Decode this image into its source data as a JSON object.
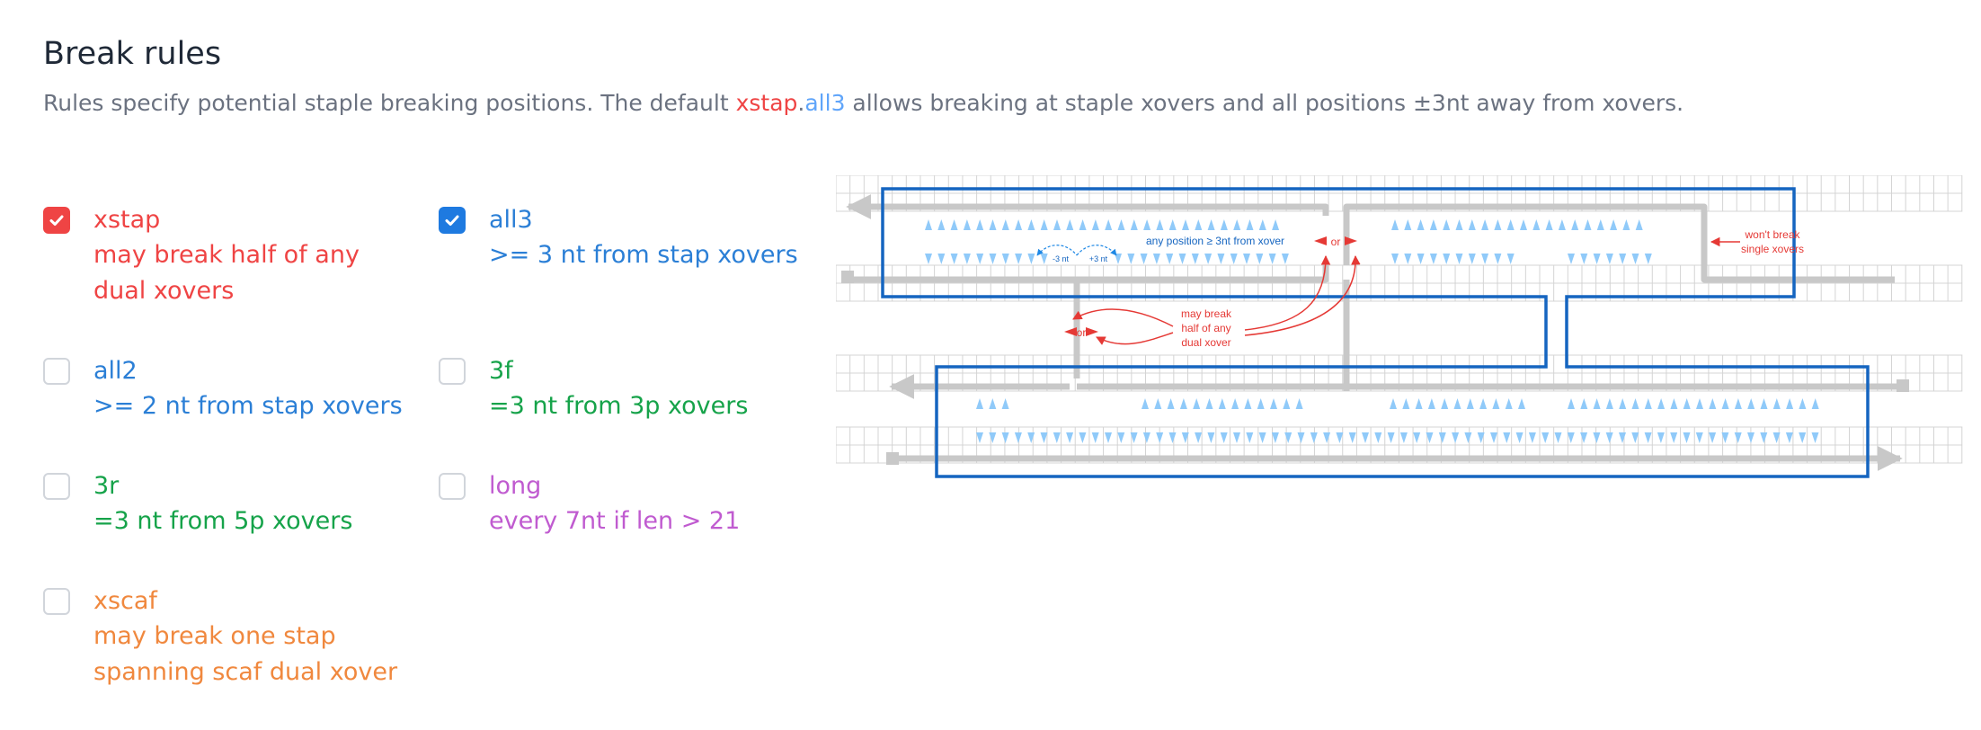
{
  "header": {
    "title": "Break rules",
    "desc_pre": "Rules specify potential staple breaking positions. The default ",
    "desc_kw1": "xstap",
    "desc_dot": ".",
    "desc_kw2": "all3",
    "desc_post": " allows breaking at staple xovers and all positions ±3nt away from xovers."
  },
  "rules": [
    {
      "name": "xstap",
      "checked": true,
      "color": "#ef4444",
      "desc1": "may break half of any",
      "desc2": "dual xovers"
    },
    {
      "name": "all3",
      "checked": true,
      "color": "#2b7fd6",
      "desc1": ">= 3 nt from stap xovers",
      "desc2": ""
    },
    {
      "name": "all2",
      "checked": false,
      "color": "#2b7fd6",
      "desc1": ">= 2 nt from stap xovers",
      "desc2": ""
    },
    {
      "name": "3f",
      "checked": false,
      "color": "#16a34a",
      "desc1": "=3 nt from 3p xovers",
      "desc2": ""
    },
    {
      "name": "3r",
      "checked": false,
      "color": "#16a34a",
      "desc1": "=3 nt from 5p xovers",
      "desc2": ""
    },
    {
      "name": "long",
      "checked": false,
      "color": "#c05bd0",
      "desc1": "every 7nt if len > 21",
      "desc2": ""
    },
    {
      "name": "xscaf",
      "checked": false,
      "color": "#f0883e",
      "desc1": "may break one stap",
      "desc2": "spanning scaf dual xover"
    }
  ],
  "diagram": {
    "any_position": "any position ≥ 3nt from xover",
    "minus3": "-3 nt",
    "plus3": "+3 nt",
    "or": "or",
    "wont_break_1": "won't break",
    "wont_break_2": "single xovers",
    "may_break_1": "may break",
    "may_break_2": "half of any",
    "may_break_3": "dual xover"
  },
  "colors": {
    "checkbox_on": "#ef4444",
    "checkbox_all3": "#1e7ae0",
    "scaffold_blue": "#1565c0",
    "triangle_blue": "#90caf9",
    "annot_red": "#e53935",
    "staple_gray": "#c8c8c8",
    "grid_gray": "#d4d4d4"
  }
}
